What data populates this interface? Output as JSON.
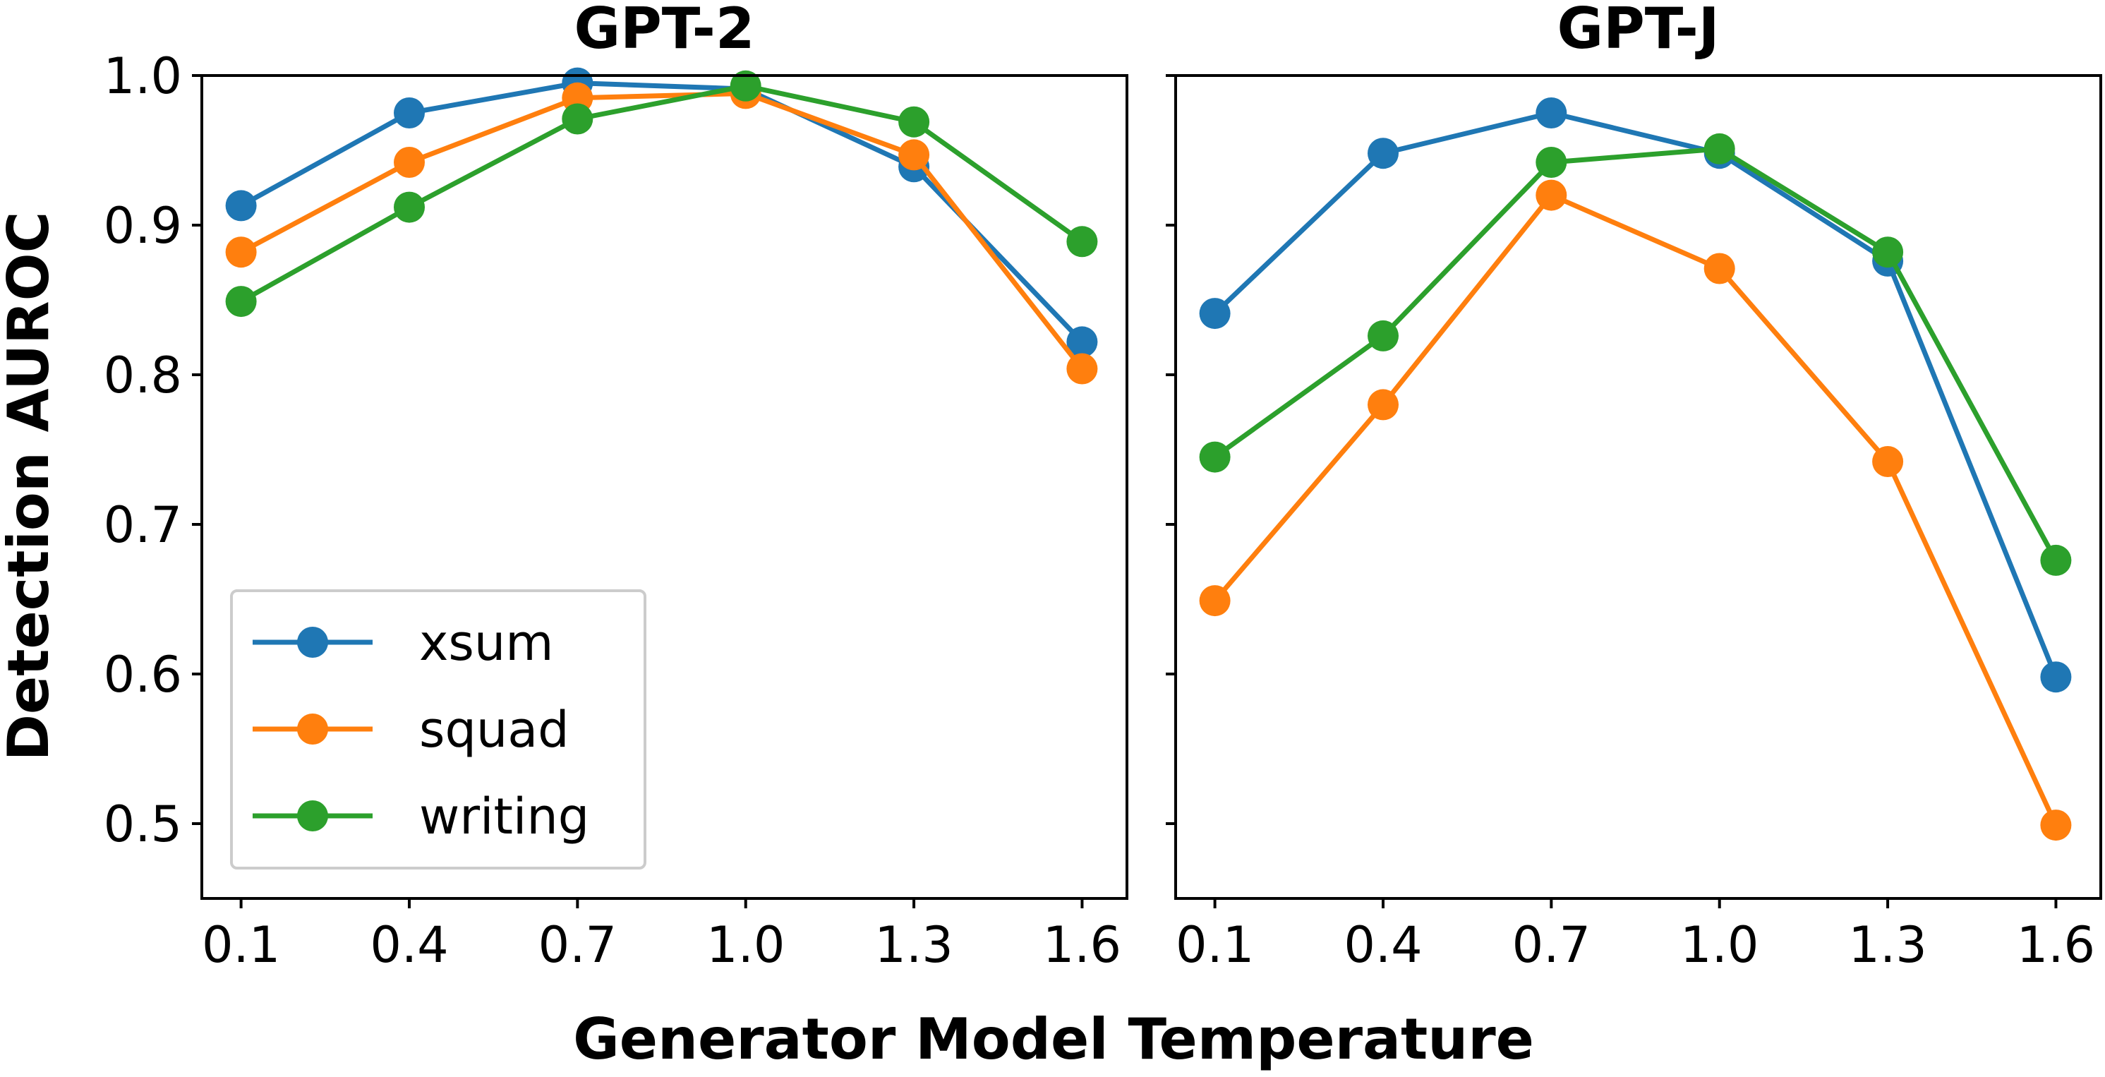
{
  "figure": {
    "ylabel": "Detection AUROC",
    "xlabel": "Generator Model Temperature"
  },
  "legend": {
    "placement": "lower-left of left panel",
    "entries": [
      "xsum",
      "squad",
      "writing"
    ]
  },
  "colors": {
    "xsum": "#1f77b4",
    "squad": "#ff7f0e",
    "writing": "#2ca02c"
  },
  "chart_data": [
    {
      "type": "line",
      "title": "GPT-2",
      "x": [
        0.1,
        0.4,
        0.7,
        1.0,
        1.3,
        1.6
      ],
      "x_tick_labels": [
        "0.1",
        "0.4",
        "0.7",
        "1.0",
        "1.3",
        "1.6"
      ],
      "y_ticks": [
        0.5,
        0.6,
        0.7,
        0.8,
        0.9,
        1.0
      ],
      "y_tick_labels": [
        "0.5",
        "0.6",
        "0.7",
        "0.8",
        "0.9",
        "1.0"
      ],
      "xlim": [
        0.03,
        1.68
      ],
      "ylim": [
        0.45,
        1.0
      ],
      "grid": false,
      "series": [
        {
          "name": "xsum",
          "values": [
            0.913,
            0.975,
            0.995,
            0.991,
            0.939,
            0.822
          ]
        },
        {
          "name": "squad",
          "values": [
            0.882,
            0.942,
            0.985,
            0.988,
            0.947,
            0.804
          ]
        },
        {
          "name": "writing",
          "values": [
            0.849,
            0.912,
            0.971,
            0.993,
            0.969,
            0.889
          ]
        }
      ]
    },
    {
      "type": "line",
      "title": "GPT-J",
      "x": [
        0.1,
        0.4,
        0.7,
        1.0,
        1.3,
        1.6
      ],
      "x_tick_labels": [
        "0.1",
        "0.4",
        "0.7",
        "1.0",
        "1.3",
        "1.6"
      ],
      "y_ticks": [
        0.5,
        0.6,
        0.7,
        0.8,
        0.9,
        1.0
      ],
      "y_tick_labels": [
        "",
        "",
        "",
        "",
        "",
        ""
      ],
      "xlim": [
        0.03,
        1.68
      ],
      "ylim": [
        0.45,
        1.0
      ],
      "grid": false,
      "series": [
        {
          "name": "xsum",
          "values": [
            0.841,
            0.948,
            0.975,
            0.948,
            0.876,
            0.598
          ]
        },
        {
          "name": "squad",
          "values": [
            0.649,
            0.78,
            0.92,
            0.871,
            0.742,
            0.499
          ]
        },
        {
          "name": "writing",
          "values": [
            0.745,
            0.826,
            0.942,
            0.951,
            0.882,
            0.676
          ]
        }
      ]
    }
  ]
}
